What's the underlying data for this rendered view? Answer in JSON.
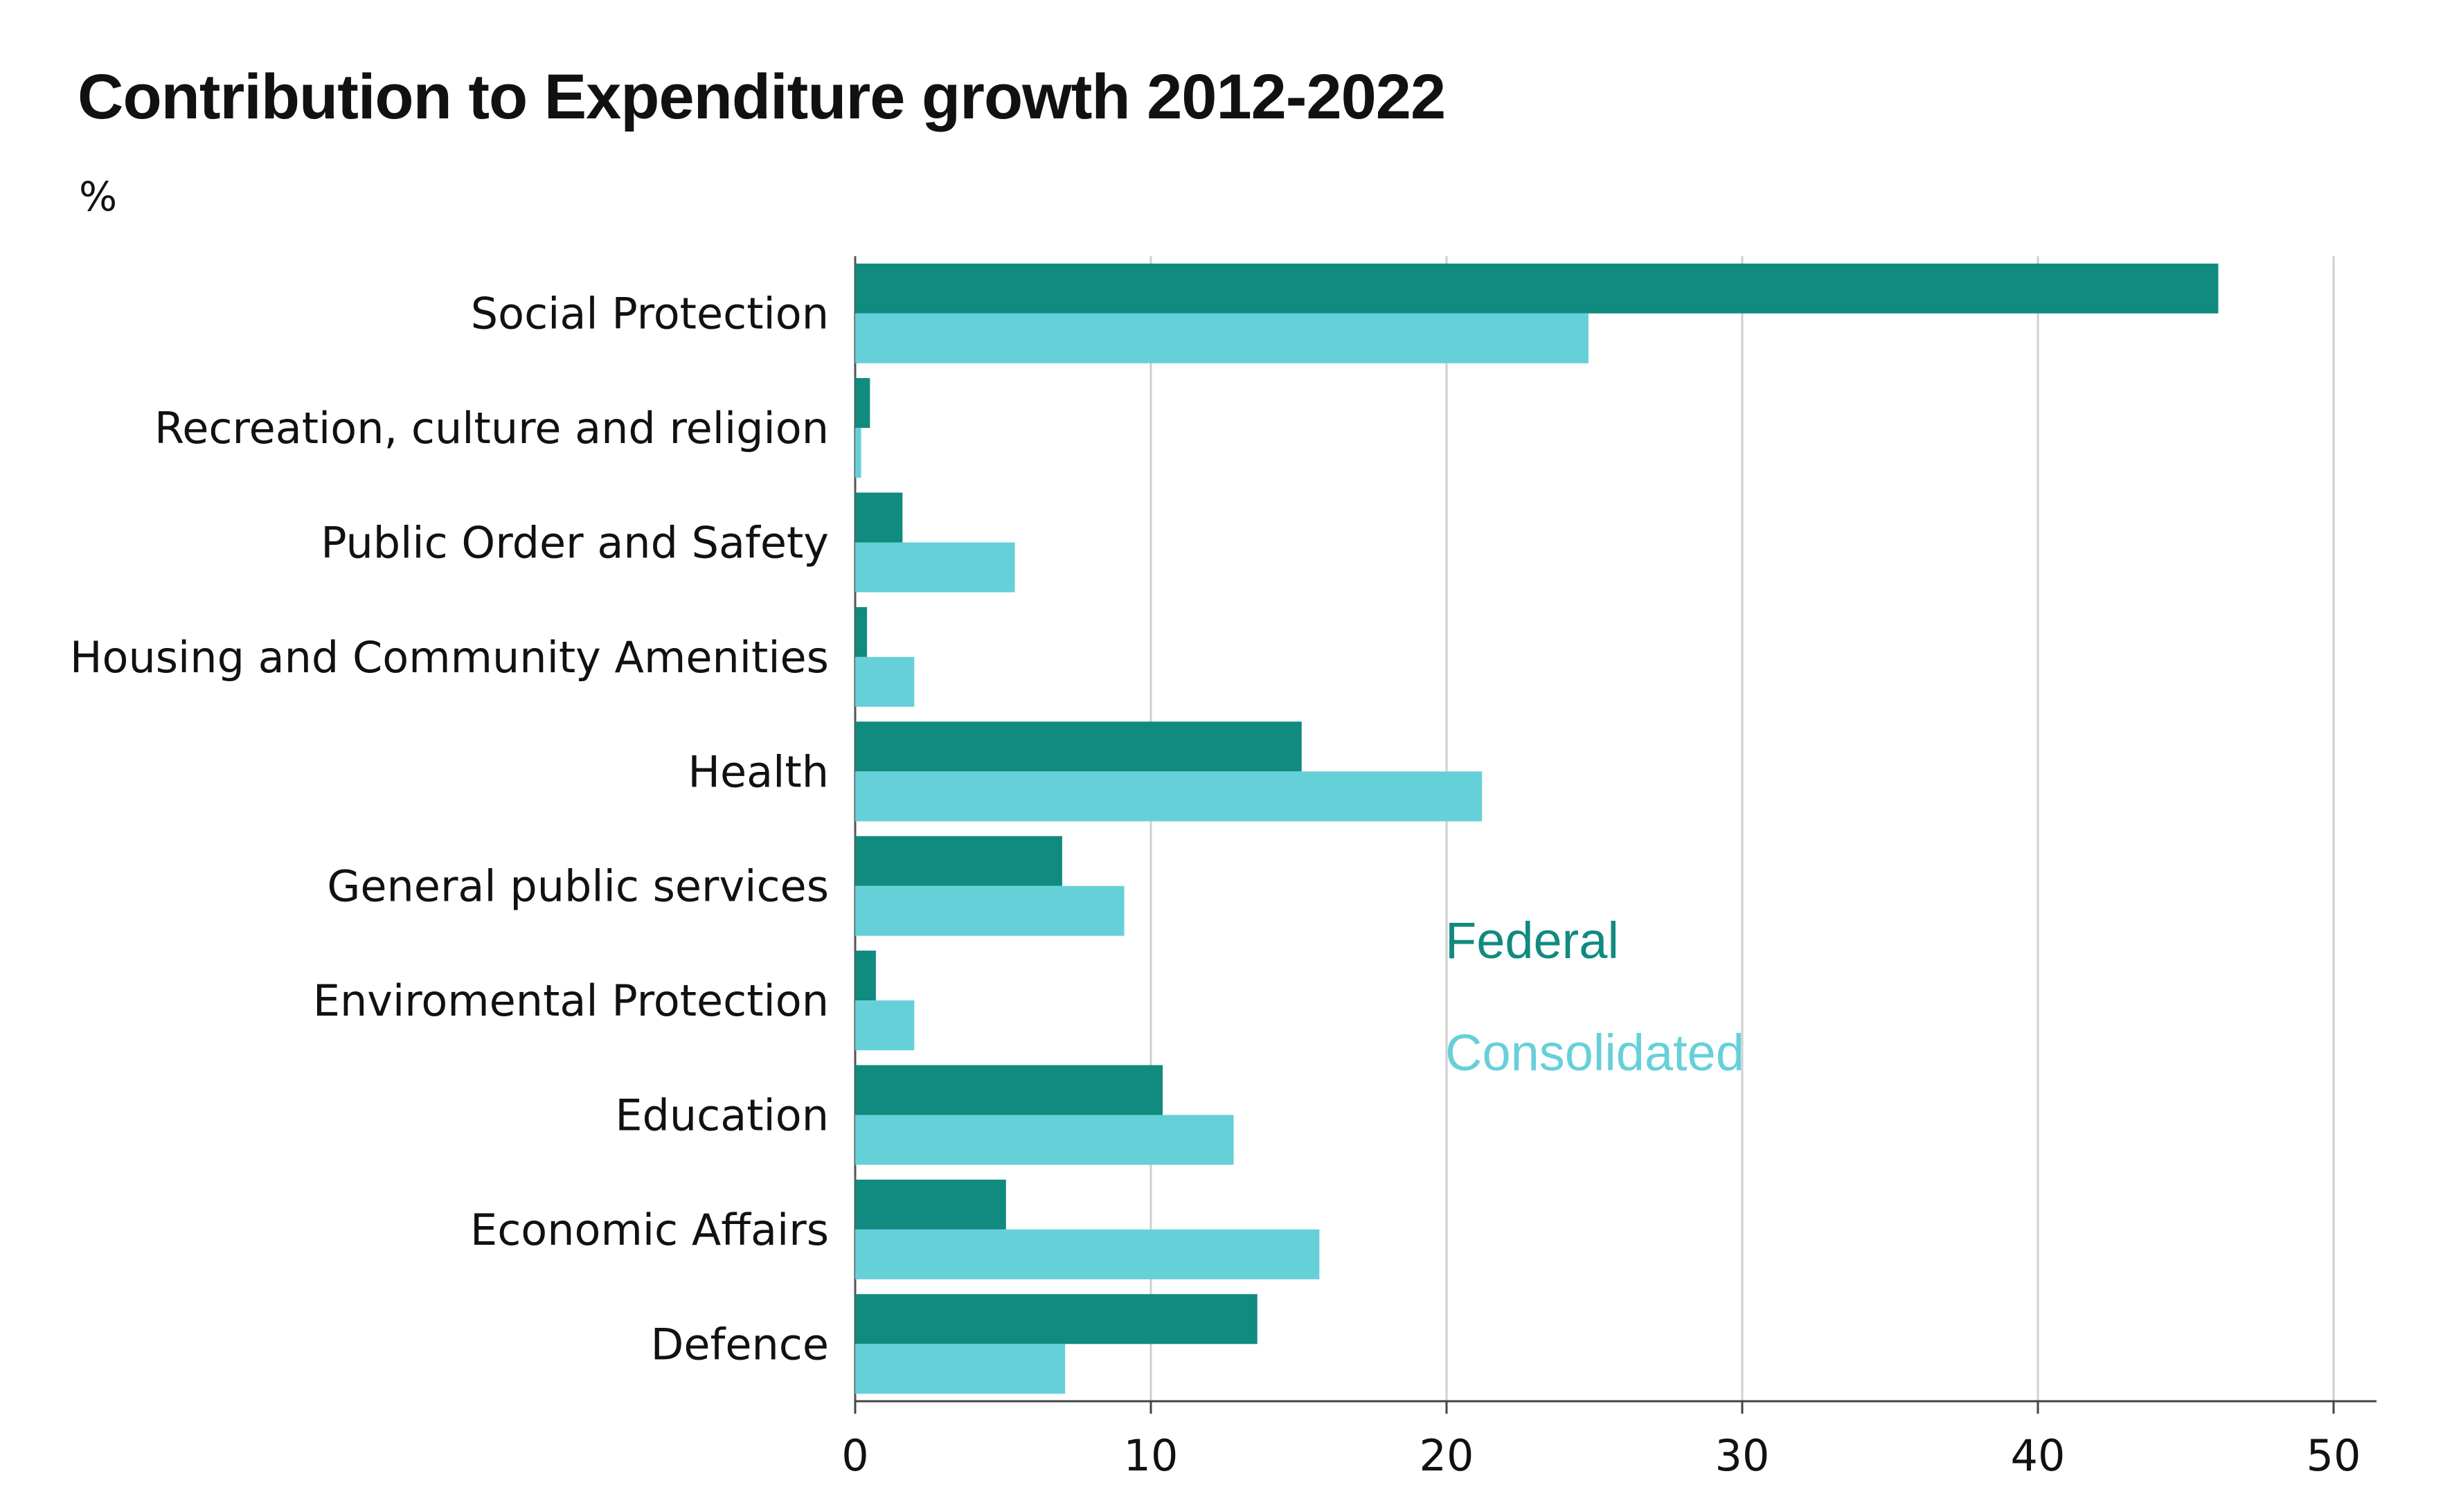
{
  "chart_data": {
    "type": "bar",
    "orientation": "horizontal",
    "title": "Contribution to Expenditure growth 2012-2022",
    "unit": "%",
    "categories": [
      "Social Protection",
      "Recreation, culture and religion",
      "Public Order and Safety",
      "Housing and Community Amenities",
      "Health",
      "General public services",
      "Enviromental Protection",
      "Education",
      "Economic Affairs",
      "Defence"
    ],
    "series": [
      {
        "name": "Federal",
        "color": "#118a80",
        "values": [
          46.1,
          0.5,
          1.6,
          0.4,
          15.1,
          7.0,
          0.7,
          10.4,
          5.1,
          13.6
        ]
      },
      {
        "name": "Consolidated",
        "color": "#66d0d9",
        "values": [
          24.8,
          0.2,
          5.4,
          2.0,
          21.2,
          9.1,
          2.0,
          12.8,
          15.7,
          7.1
        ]
      }
    ],
    "xlim": [
      0,
      50
    ],
    "xticks": [
      "0",
      "10",
      "20",
      "30",
      "40",
      "50"
    ],
    "grid": true,
    "legend_position": "inside-right"
  }
}
